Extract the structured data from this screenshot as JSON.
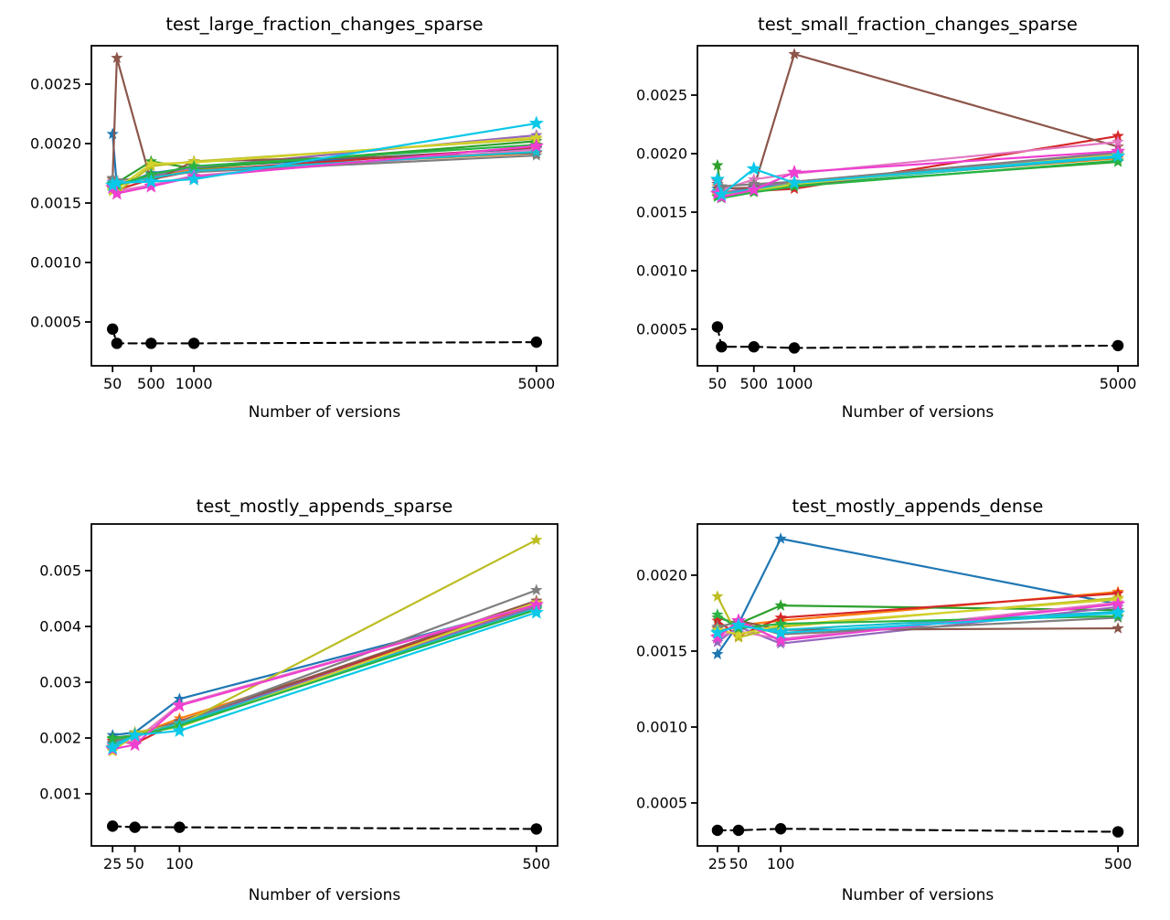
{
  "figure": {
    "background": "#ffffff",
    "x_axis_label": "Number of versions"
  },
  "chart_data": [
    {
      "type": "line",
      "title": "test_large_fraction_changes_sparse",
      "xlabel": "Number of versions",
      "x": [
        50,
        100,
        500,
        1000,
        5000
      ],
      "xlim": [
        -197.5,
        5247.5
      ],
      "ylim": [
        0.000131,
        0.002823
      ],
      "grid": false,
      "legend": "none",
      "xticks": {
        "values": [
          50,
          500,
          1000,
          5000
        ],
        "labels": [
          "50",
          "500",
          "1000",
          "5000"
        ]
      },
      "yticks": {
        "values": [
          0.0005,
          0.001,
          0.0015,
          0.002,
          0.0025
        ],
        "labels": [
          "0.0005",
          "0.0010",
          "0.0015",
          "0.0020",
          "0.0025"
        ]
      },
      "series": [
        {
          "name": "blue",
          "color": "#1f77b4",
          "marker": "star",
          "size": 7,
          "values": [
            0.00208,
            0.00164,
            0.00175,
            0.0018,
            0.00196
          ]
        },
        {
          "name": "orange",
          "color": "#ff7f0e",
          "marker": "star",
          "size": 7,
          "values": [
            0.0017,
            0.00166,
            0.00172,
            0.00178,
            0.00192
          ]
        },
        {
          "name": "green",
          "color": "#2ca02c",
          "marker": "star",
          "size": 7,
          "values": [
            0.00162,
            0.00167,
            0.00185,
            0.00179,
            0.00202
          ]
        },
        {
          "name": "red",
          "color": "#d62728",
          "marker": "star",
          "size": 7,
          "values": [
            0.00164,
            0.00161,
            0.0017,
            0.00177,
            0.00197
          ]
        },
        {
          "name": "purple",
          "color": "#9467bd",
          "marker": "star",
          "size": 7,
          "values": [
            0.00168,
            0.00166,
            0.00173,
            0.0018,
            0.00207
          ]
        },
        {
          "name": "brown",
          "color": "#8c564b",
          "marker": "star",
          "size": 7,
          "values": [
            0.0017,
            0.00272,
            0.00168,
            0.00185,
            0.00192
          ]
        },
        {
          "name": "pink",
          "color": "#e377c2",
          "marker": "star",
          "size": 7,
          "values": [
            0.00166,
            0.0016,
            0.00165,
            0.00173,
            0.00195
          ]
        },
        {
          "name": "gray",
          "color": "#7f7f7f",
          "marker": "star",
          "size": 7,
          "values": [
            0.00171,
            0.00169,
            0.00172,
            0.00176,
            0.0019
          ]
        },
        {
          "name": "olive",
          "color": "#bcbd22",
          "marker": "star",
          "size": 7,
          "values": [
            0.0016,
            0.00159,
            0.00181,
            0.00185,
            0.00204
          ]
        },
        {
          "name": "cyan",
          "color": "#17becf",
          "marker": "star",
          "size": 7,
          "values": [
            0.00167,
            0.00166,
            0.00171,
            0.00177,
            0.00193
          ]
        },
        {
          "name": "khaki",
          "color": "#d2d22d",
          "marker": "star",
          "size": 7,
          "values": [
            0.00161,
            0.00162,
            0.00183,
            0.00184,
            0.00205
          ]
        },
        {
          "name": "green2",
          "color": "#28b444",
          "marker": "star",
          "size": 7,
          "values": [
            0.00166,
            0.00165,
            0.00174,
            0.00181,
            0.00199
          ]
        },
        {
          "name": "magenta",
          "color": "#ee3fd0",
          "marker": "star",
          "size": 8.5,
          "values": [
            0.00163,
            0.00158,
            0.00164,
            0.00172,
            0.00198
          ]
        },
        {
          "name": "bright-cyan",
          "color": "#0ac8e8",
          "marker": "star",
          "size": 8.5,
          "values": [
            0.00165,
            0.00167,
            0.00168,
            0.0017,
            0.00217
          ]
        },
        {
          "name": "baseline",
          "color": "#000000",
          "marker": "circle",
          "size": 6.2,
          "dashed": true,
          "values": [
            0.00044,
            0.00032,
            0.00032,
            0.00032,
            0.00033
          ]
        }
      ]
    },
    {
      "type": "line",
      "title": "test_small_fraction_changes_sparse",
      "xlabel": "Number of versions",
      "x": [
        50,
        100,
        500,
        1000,
        5000
      ],
      "xlim": [
        -197.5,
        5247.5
      ],
      "ylim": [
        0.0001875,
        0.002922
      ],
      "grid": false,
      "legend": "none",
      "xticks": {
        "values": [
          50,
          500,
          1000,
          5000
        ],
        "labels": [
          "50",
          "500",
          "1000",
          "5000"
        ]
      },
      "yticks": {
        "values": [
          0.0005,
          0.001,
          0.0015,
          0.002,
          0.0025
        ],
        "labels": [
          "0.0005",
          "0.0010",
          "0.0015",
          "0.0020",
          "0.0025"
        ]
      },
      "series": [
        {
          "name": "blue",
          "color": "#1f77b4",
          "marker": "star",
          "size": 7,
          "values": [
            0.0017,
            0.00165,
            0.00172,
            0.00174,
            0.00199
          ]
        },
        {
          "name": "orange",
          "color": "#ff7f0e",
          "marker": "star",
          "size": 7,
          "values": [
            0.00172,
            0.00167,
            0.0017,
            0.00175,
            0.00196
          ]
        },
        {
          "name": "green",
          "color": "#2ca02c",
          "marker": "star",
          "size": 7,
          "values": [
            0.0019,
            0.00166,
            0.00171,
            0.00173,
            0.00193
          ]
        },
        {
          "name": "red",
          "color": "#d62728",
          "marker": "star",
          "size": 7,
          "values": [
            0.00165,
            0.00163,
            0.00168,
            0.0017,
            0.00215
          ]
        },
        {
          "name": "purple",
          "color": "#9467bd",
          "marker": "star",
          "size": 7,
          "values": [
            0.00167,
            0.00166,
            0.00172,
            0.00176,
            0.002
          ]
        },
        {
          "name": "brown",
          "color": "#8c564b",
          "marker": "star",
          "size": 7,
          "values": [
            0.00174,
            0.0017,
            0.00171,
            0.00285,
            0.00206
          ]
        },
        {
          "name": "pink",
          "color": "#e377c2",
          "marker": "star",
          "size": 7,
          "values": [
            0.00176,
            0.00169,
            0.00178,
            0.00183,
            0.0021
          ]
        },
        {
          "name": "gray",
          "color": "#7f7f7f",
          "marker": "star",
          "size": 7,
          "values": [
            0.00177,
            0.00172,
            0.00174,
            0.00176,
            0.00201
          ]
        },
        {
          "name": "olive",
          "color": "#bcbd22",
          "marker": "star",
          "size": 7,
          "values": [
            0.00164,
            0.00166,
            0.00168,
            0.00175,
            0.00198
          ]
        },
        {
          "name": "cyan",
          "color": "#17becf",
          "marker": "star",
          "size": 7,
          "values": [
            0.00168,
            0.00165,
            0.0017,
            0.00174,
            0.00197
          ]
        },
        {
          "name": "khaki",
          "color": "#d2d22d",
          "marker": "star",
          "size": 7,
          "values": [
            0.00165,
            0.00164,
            0.00168,
            0.00174,
            0.00199
          ]
        },
        {
          "name": "green2",
          "color": "#28b444",
          "marker": "star",
          "size": 7,
          "values": [
            0.00163,
            0.00162,
            0.00167,
            0.00172,
            0.00194
          ]
        },
        {
          "name": "magenta",
          "color": "#ee3fd0",
          "marker": "star",
          "size": 8.5,
          "values": [
            0.00166,
            0.00163,
            0.00169,
            0.00184,
            0.00202
          ]
        },
        {
          "name": "bright-cyan",
          "color": "#0ac8e8",
          "marker": "star",
          "size": 8.5,
          "values": [
            0.00178,
            0.00165,
            0.00187,
            0.00175,
            0.00198
          ]
        },
        {
          "name": "baseline",
          "color": "#000000",
          "marker": "circle",
          "size": 6.2,
          "dashed": true,
          "values": [
            0.00052,
            0.00035,
            0.00035,
            0.00034,
            0.00036
          ]
        }
      ]
    },
    {
      "type": "line",
      "title": "test_mostly_appends_sparse",
      "xlabel": "Number of versions",
      "x": [
        25,
        50,
        100,
        500
      ],
      "xlim": [
        1.25,
        523.75
      ],
      "ylim": [
        6.56e-05,
        0.005836
      ],
      "grid": false,
      "legend": "none",
      "xticks": {
        "values": [
          25,
          50,
          100,
          500
        ],
        "labels": [
          "25",
          "50",
          "100",
          "500"
        ]
      },
      "yticks": {
        "values": [
          0.001,
          0.002,
          0.003,
          0.004,
          0.005
        ],
        "labels": [
          "0.001",
          "0.002",
          "0.003",
          "0.004",
          "0.005"
        ]
      },
      "series": [
        {
          "name": "blue",
          "color": "#1f77b4",
          "marker": "star",
          "size": 7,
          "values": [
            0.00205,
            0.0021,
            0.0027,
            0.00438
          ]
        },
        {
          "name": "orange",
          "color": "#ff7f0e",
          "marker": "star",
          "size": 7,
          "values": [
            0.00185,
            0.00205,
            0.00235,
            0.00437
          ]
        },
        {
          "name": "green",
          "color": "#2ca02c",
          "marker": "star",
          "size": 7,
          "values": [
            0.002,
            0.00205,
            0.00225,
            0.00434
          ]
        },
        {
          "name": "red",
          "color": "#d62728",
          "marker": "star",
          "size": 7,
          "values": [
            0.00195,
            0.0019,
            0.0023,
            0.00441
          ]
        },
        {
          "name": "purple",
          "color": "#9467bd",
          "marker": "star",
          "size": 7,
          "values": [
            0.0019,
            0.00208,
            0.00228,
            0.00436
          ]
        },
        {
          "name": "brown",
          "color": "#8c564b",
          "marker": "star",
          "size": 7,
          "values": [
            0.00183,
            0.00205,
            0.0023,
            0.00446
          ]
        },
        {
          "name": "pink",
          "color": "#e377c2",
          "marker": "star",
          "size": 7,
          "values": [
            0.00186,
            0.00196,
            0.0026,
            0.0044
          ]
        },
        {
          "name": "gray",
          "color": "#7f7f7f",
          "marker": "star",
          "size": 7,
          "values": [
            0.00192,
            0.00207,
            0.00228,
            0.00465
          ]
        },
        {
          "name": "olive",
          "color": "#bcbd22",
          "marker": "star",
          "size": 7,
          "values": [
            0.00178,
            0.0021,
            0.00224,
            0.00555
          ]
        },
        {
          "name": "cyan",
          "color": "#17becf",
          "marker": "star",
          "size": 7,
          "values": [
            0.00188,
            0.00204,
            0.00226,
            0.00432
          ]
        },
        {
          "name": "khaki",
          "color": "#d2d22d",
          "marker": "star",
          "size": 7,
          "values": [
            0.00176,
            0.00206,
            0.0022,
            0.00443
          ]
        },
        {
          "name": "green2",
          "color": "#28b444",
          "marker": "star",
          "size": 7,
          "values": [
            0.00198,
            0.00204,
            0.00222,
            0.0043
          ]
        },
        {
          "name": "magenta",
          "color": "#ee3fd0",
          "marker": "star",
          "size": 8.5,
          "values": [
            0.0018,
            0.00188,
            0.00258,
            0.00439
          ]
        },
        {
          "name": "bright-cyan",
          "color": "#0ac8e8",
          "marker": "star",
          "size": 8.5,
          "values": [
            0.00182,
            0.00205,
            0.00213,
            0.00425
          ]
        },
        {
          "name": "baseline",
          "color": "#000000",
          "marker": "circle",
          "size": 6.2,
          "dashed": true,
          "values": [
            0.00042,
            0.0004,
            0.0004,
            0.00037
          ]
        }
      ]
    },
    {
      "type": "line",
      "title": "test_mostly_appends_dense",
      "xlabel": "Number of versions",
      "x": [
        25,
        50,
        100,
        500
      ],
      "xlim": [
        1.25,
        523.75
      ],
      "ylim": [
        0.000217,
        0.002337
      ],
      "grid": false,
      "legend": "none",
      "xticks": {
        "values": [
          25,
          50,
          100,
          500
        ],
        "labels": [
          "25",
          "50",
          "100",
          "500"
        ]
      },
      "yticks": {
        "values": [
          0.0005,
          0.001,
          0.0015,
          0.002
        ],
        "labels": [
          "0.0005",
          "0.0010",
          "0.0015",
          "0.0020"
        ]
      },
      "series": [
        {
          "name": "blue",
          "color": "#1f77b4",
          "marker": "star",
          "size": 7,
          "values": [
            0.00148,
            0.00168,
            0.00224,
            0.00181
          ]
        },
        {
          "name": "orange",
          "color": "#ff7f0e",
          "marker": "star",
          "size": 7,
          "values": [
            0.00163,
            0.00167,
            0.0017,
            0.00189
          ]
        },
        {
          "name": "green",
          "color": "#2ca02c",
          "marker": "star",
          "size": 7,
          "values": [
            0.00172,
            0.00168,
            0.0018,
            0.00177
          ]
        },
        {
          "name": "red",
          "color": "#d62728",
          "marker": "star",
          "size": 7,
          "values": [
            0.0017,
            0.0016,
            0.00172,
            0.00188
          ]
        },
        {
          "name": "purple",
          "color": "#9467bd",
          "marker": "star",
          "size": 7,
          "values": [
            0.00156,
            0.00166,
            0.00155,
            0.00179
          ]
        },
        {
          "name": "brown",
          "color": "#8c564b",
          "marker": "star",
          "size": 7,
          "values": [
            0.00165,
            0.0017,
            0.00164,
            0.00165
          ]
        },
        {
          "name": "pink",
          "color": "#e377c2",
          "marker": "star",
          "size": 7,
          "values": [
            0.0016,
            0.00163,
            0.00158,
            0.00182
          ]
        },
        {
          "name": "gray",
          "color": "#7f7f7f",
          "marker": "star",
          "size": 7,
          "values": [
            0.00166,
            0.00169,
            0.00161,
            0.00172
          ]
        },
        {
          "name": "olive",
          "color": "#bcbd22",
          "marker": "star",
          "size": 7,
          "values": [
            0.00186,
            0.00159,
            0.00166,
            0.00185
          ]
        },
        {
          "name": "cyan",
          "color": "#17becf",
          "marker": "star",
          "size": 7,
          "values": [
            0.00163,
            0.00166,
            0.00164,
            0.00176
          ]
        },
        {
          "name": "khaki",
          "color": "#d2d22d",
          "marker": "star",
          "size": 7,
          "values": [
            0.00164,
            0.00161,
            0.00167,
            0.00184
          ]
        },
        {
          "name": "green2",
          "color": "#28b444",
          "marker": "star",
          "size": 7,
          "values": [
            0.00174,
            0.00165,
            0.00168,
            0.00173
          ]
        },
        {
          "name": "magenta",
          "color": "#ee3fd0",
          "marker": "star",
          "size": 8.5,
          "values": [
            0.00159,
            0.0017,
            0.00157,
            0.00181
          ]
        },
        {
          "name": "bright-cyan",
          "color": "#0ac8e8",
          "marker": "star",
          "size": 8.5,
          "values": [
            0.00162,
            0.00167,
            0.00162,
            0.00175
          ]
        },
        {
          "name": "baseline",
          "color": "#000000",
          "marker": "circle",
          "size": 6.2,
          "dashed": true,
          "values": [
            0.00032,
            0.00032,
            0.00033,
            0.00031
          ]
        }
      ]
    }
  ]
}
